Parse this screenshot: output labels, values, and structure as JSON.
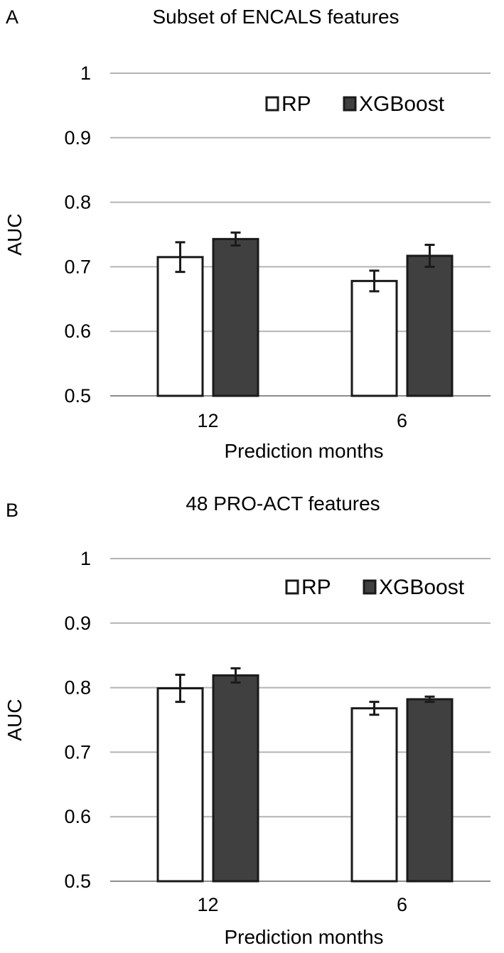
{
  "colors": {
    "rp": "#ffffff",
    "xgboost": "#404040",
    "outline": "#1a1a1a"
  },
  "chart_data": [
    {
      "panel": "A",
      "type": "bar",
      "title": "Subset of ENCALS features",
      "xlabel": "Prediction months",
      "ylabel": "AUC",
      "ylim": [
        0.5,
        1
      ],
      "yticks": [
        "0.5",
        "0.6",
        "0.7",
        "0.8",
        "0.9",
        "1"
      ],
      "categories": [
        "12",
        "6"
      ],
      "series": [
        {
          "name": "RP",
          "values": [
            0.715,
            0.678
          ],
          "err": [
            0.023,
            0.016
          ]
        },
        {
          "name": "XGBoost",
          "values": [
            0.743,
            0.717
          ],
          "err": [
            0.01,
            0.017
          ]
        }
      ],
      "legend": "top-right"
    },
    {
      "panel": "B",
      "type": "bar",
      "title": "48 PRO-ACT features",
      "xlabel": "Prediction months",
      "ylabel": "AUC",
      "ylim": [
        0.5,
        1
      ],
      "yticks": [
        "0.5",
        "0.6",
        "0.7",
        "0.8",
        "0.9",
        "1"
      ],
      "categories": [
        "12",
        "6"
      ],
      "series": [
        {
          "name": "RP",
          "values": [
            0.799,
            0.768
          ],
          "err": [
            0.021,
            0.01
          ]
        },
        {
          "name": "XGBoost",
          "values": [
            0.819,
            0.782
          ],
          "err": [
            0.011,
            0.004
          ]
        }
      ],
      "legend": "top-right"
    }
  ]
}
